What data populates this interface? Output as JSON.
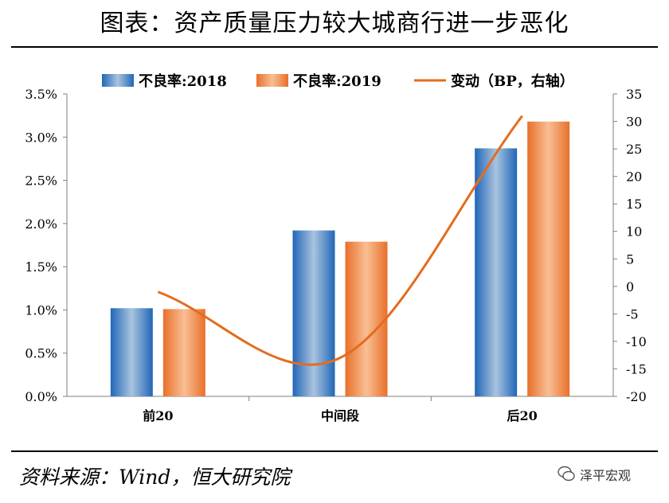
{
  "title": "图表：资产质量压力较大城商行进一步恶化",
  "source": "资料来源：Wind，恒大研究院",
  "watermark": "泽平宏观",
  "colors": {
    "bar2018_edge": "#2166b9",
    "bar2018_mid": "#a9c4de",
    "bar2019_edge": "#e8702a",
    "bar2019_mid": "#f9be94",
    "line": "#e46c1e",
    "axis": "#7f7f7f"
  },
  "chart_data": {
    "type": "bar",
    "categories": [
      "前20",
      "中间段",
      "后20"
    ],
    "series": [
      {
        "name": "不良率:2018",
        "axis": "left",
        "values": [
          1.02,
          1.92,
          2.87
        ]
      },
      {
        "name": "不良率:2019",
        "axis": "left",
        "values": [
          1.01,
          1.79,
          3.18
        ]
      },
      {
        "name": "变动（BP，右轴）",
        "axis": "right",
        "type": "line",
        "values": [
          -1,
          -13,
          31
        ]
      }
    ],
    "left_axis": {
      "ylim": [
        0,
        3.5
      ],
      "ticks": [
        "0.0%",
        "0.5%",
        "1.0%",
        "1.5%",
        "2.0%",
        "2.5%",
        "3.0%",
        "3.5%"
      ]
    },
    "right_axis": {
      "ylim": [
        -20,
        35
      ],
      "ticks": [
        "-20",
        "-15",
        "-10",
        "-5",
        "0",
        "5",
        "10",
        "15",
        "20",
        "25",
        "30",
        "35"
      ]
    },
    "legend": "top"
  }
}
